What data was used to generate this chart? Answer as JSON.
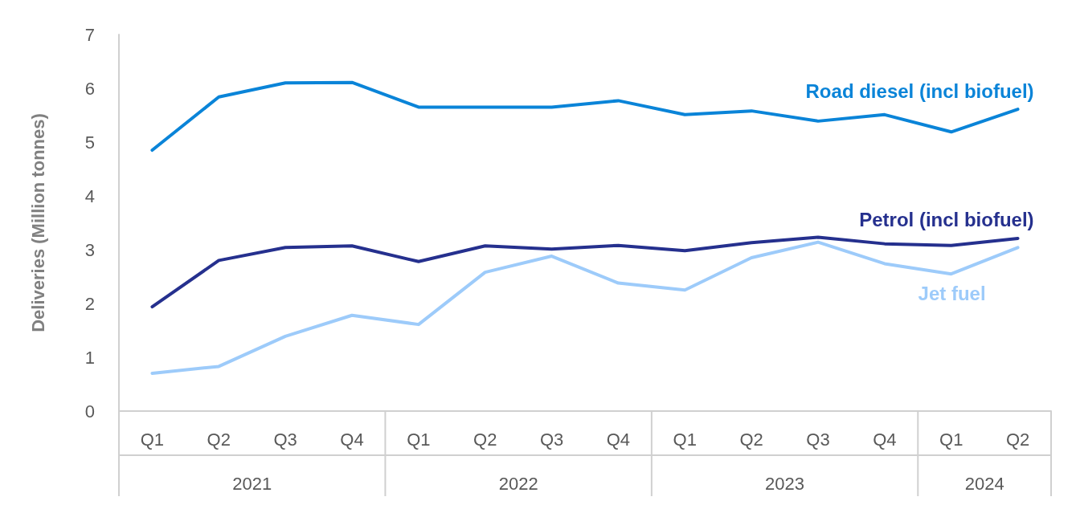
{
  "chart_data": {
    "type": "line",
    "ylabel": "Deliveries (Million tonnes)",
    "categories": [
      "Q1",
      "Q2",
      "Q3",
      "Q4",
      "Q1",
      "Q2",
      "Q3",
      "Q4",
      "Q1",
      "Q2",
      "Q3",
      "Q4",
      "Q1",
      "Q2"
    ],
    "annotations": [
      "2021",
      "2022",
      "2023",
      "2024"
    ],
    "series": [
      {
        "name": "Road diesel (incl biofuel)",
        "color": "#0a84d8",
        "values": [
          4.85,
          5.84,
          6.1,
          6.11,
          5.65,
          5.65,
          5.65,
          5.77,
          5.51,
          5.58,
          5.39,
          5.51,
          5.19,
          5.61
        ]
      },
      {
        "name": "Petrol (incl biofuel)",
        "color": "#25308e",
        "values": [
          1.94,
          2.8,
          3.04,
          3.07,
          2.78,
          3.07,
          3.01,
          3.08,
          2.98,
          3.13,
          3.23,
          3.11,
          3.08,
          3.21
        ]
      },
      {
        "name": "Jet fuel",
        "color": "#9dcbfa",
        "values": [
          0.7,
          0.83,
          1.39,
          1.78,
          1.61,
          2.58,
          2.88,
          2.38,
          2.25,
          2.85,
          3.14,
          2.74,
          2.55,
          3.04
        ]
      }
    ],
    "ylim": [
      0,
      7
    ],
    "yticks": [
      0,
      1,
      2,
      3,
      4,
      5,
      6,
      7
    ],
    "grid": false,
    "legend": false,
    "marker": "none",
    "line_style": "solid"
  }
}
